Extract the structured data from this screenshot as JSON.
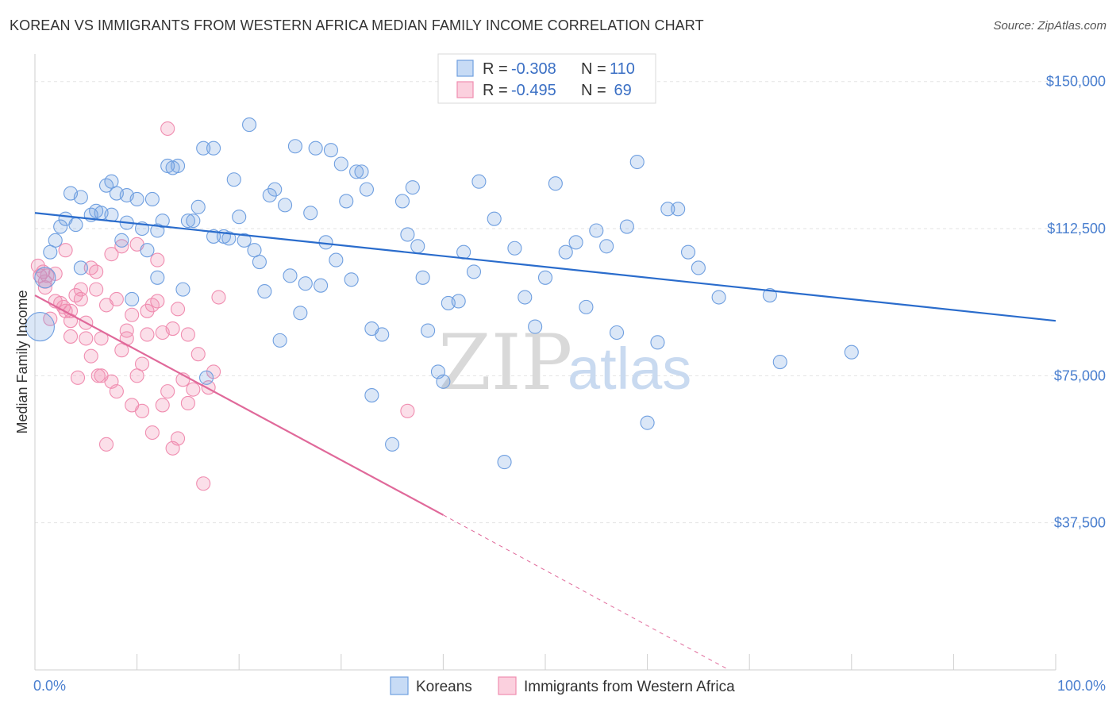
{
  "title": "KOREAN VS IMMIGRANTS FROM WESTERN AFRICA MEDIAN FAMILY INCOME CORRELATION CHART",
  "source": "Source: ZipAtlas.com",
  "watermark": {
    "zip": "ZIP",
    "atlas": "atlas"
  },
  "legend_box": {
    "rows": [
      {
        "r_label": "R = ",
        "r_value": "-0.308",
        "n_label": "N = ",
        "n_value": "110"
      },
      {
        "r_label": "R = ",
        "r_value": "-0.495",
        "n_label": "N = ",
        "n_value": " 69"
      }
    ]
  },
  "colors": {
    "koreans": "#6f9fe0",
    "koreans_line": "#2a6ccc",
    "wafrica": "#f08db0",
    "wafrica_line": "#e0699a",
    "grid": "#e3e3e3",
    "tick_label": "#4a7fcf"
  },
  "chart_data": {
    "type": "scatter",
    "title": "KOREAN VS IMMIGRANTS FROM WESTERN AFRICA MEDIAN FAMILY INCOME CORRELATION CHART",
    "ylabel": "Median Family Income",
    "xlabel": "",
    "xlim": [
      0,
      100
    ],
    "ylim": [
      0,
      155000
    ],
    "x_tick_labels": [
      "0.0%",
      "100.0%"
    ],
    "y_ticks": [
      37500,
      75000,
      112500,
      150000
    ],
    "y_tick_labels": [
      "$37,500",
      "$75,000",
      "$112,500",
      "$150,000"
    ],
    "grid": true,
    "legend_position": "top-center",
    "series": [
      {
        "name": "Koreans",
        "points": [
          [
            0.5,
            87500
          ],
          [
            1.0,
            100000
          ],
          [
            1.5,
            106500
          ],
          [
            2.0,
            109500
          ],
          [
            2.5,
            113000
          ],
          [
            3.0,
            115000
          ],
          [
            3.5,
            121500
          ],
          [
            4.0,
            113500
          ],
          [
            4.5,
            102500
          ],
          [
            4.5,
            120500
          ],
          [
            5.5,
            116000
          ],
          [
            6.0,
            117000
          ],
          [
            6.5,
            116500
          ],
          [
            7.0,
            123500
          ],
          [
            7.5,
            124500
          ],
          [
            7.5,
            116000
          ],
          [
            8.0,
            121500
          ],
          [
            8.5,
            109500
          ],
          [
            9.0,
            114000
          ],
          [
            9.0,
            121000
          ],
          [
            9.5,
            94500
          ],
          [
            10.0,
            120000
          ],
          [
            10.5,
            112500
          ],
          [
            11.0,
            107000
          ],
          [
            11.5,
            120000
          ],
          [
            12.0,
            112000
          ],
          [
            12.0,
            100000
          ],
          [
            12.5,
            114500
          ],
          [
            13.0,
            128500
          ],
          [
            13.5,
            128000
          ],
          [
            14.0,
            128500
          ],
          [
            14.5,
            97000
          ],
          [
            15.0,
            114500
          ],
          [
            15.5,
            114500
          ],
          [
            16.0,
            118000
          ],
          [
            16.5,
            133000
          ],
          [
            16.8,
            74500
          ],
          [
            17.5,
            110500
          ],
          [
            17.5,
            133000
          ],
          [
            18.5,
            110500
          ],
          [
            19.0,
            110000
          ],
          [
            19.5,
            125000
          ],
          [
            20.0,
            115500
          ],
          [
            20.5,
            109500
          ],
          [
            21.0,
            139000
          ],
          [
            21.5,
            107000
          ],
          [
            22.0,
            104000
          ],
          [
            22.5,
            96500
          ],
          [
            23.0,
            121000
          ],
          [
            23.5,
            122500
          ],
          [
            24.0,
            84000
          ],
          [
            24.5,
            118500
          ],
          [
            25.0,
            100500
          ],
          [
            25.5,
            133500
          ],
          [
            26.0,
            91000
          ],
          [
            26.5,
            98500
          ],
          [
            27.0,
            116500
          ],
          [
            27.5,
            133000
          ],
          [
            28.0,
            98000
          ],
          [
            28.5,
            109000
          ],
          [
            29.0,
            132500
          ],
          [
            29.5,
            104500
          ],
          [
            30.0,
            129000
          ],
          [
            30.5,
            119500
          ],
          [
            31.0,
            99500
          ],
          [
            31.5,
            127000
          ],
          [
            32.0,
            127000
          ],
          [
            32.5,
            122500
          ],
          [
            33.0,
            87000
          ],
          [
            33.0,
            70000
          ],
          [
            34.0,
            85500
          ],
          [
            35.0,
            57500
          ],
          [
            36.0,
            119500
          ],
          [
            36.5,
            111000
          ],
          [
            37.0,
            123000
          ],
          [
            37.5,
            108000
          ],
          [
            38.0,
            100000
          ],
          [
            38.5,
            86500
          ],
          [
            39.5,
            76000
          ],
          [
            40.0,
            73500
          ],
          [
            40.5,
            93500
          ],
          [
            41.5,
            94000
          ],
          [
            42.0,
            106500
          ],
          [
            43.0,
            101500
          ],
          [
            43.5,
            124500
          ],
          [
            45.0,
            115000
          ],
          [
            46.0,
            53000
          ],
          [
            47.0,
            107500
          ],
          [
            48.0,
            95000
          ],
          [
            49.0,
            87500
          ],
          [
            50.0,
            100000
          ],
          [
            51.0,
            124000
          ],
          [
            52.0,
            106500
          ],
          [
            53.0,
            109000
          ],
          [
            54.0,
            92500
          ],
          [
            55.0,
            112000
          ],
          [
            56.0,
            108000
          ],
          [
            57.0,
            86000
          ],
          [
            58.0,
            113000
          ],
          [
            59.0,
            129500
          ],
          [
            60.0,
            63000
          ],
          [
            61.0,
            83500
          ],
          [
            62.0,
            117500
          ],
          [
            63.0,
            117500
          ],
          [
            64.0,
            106500
          ],
          [
            65.0,
            102500
          ],
          [
            67.0,
            95000
          ],
          [
            72.0,
            95500
          ],
          [
            73.0,
            78500
          ],
          [
            80.0,
            81000
          ]
        ]
      },
      {
        "name": "Immigrants from Western Africa",
        "points": [
          [
            0.3,
            103000
          ],
          [
            0.5,
            100500
          ],
          [
            0.8,
            101500
          ],
          [
            1.0,
            99000
          ],
          [
            1.2,
            100500
          ],
          [
            1.5,
            89500
          ],
          [
            2.0,
            101000
          ],
          [
            2.5,
            93500
          ],
          [
            2.8,
            92500
          ],
          [
            3.0,
            91500
          ],
          [
            3.0,
            107000
          ],
          [
            3.5,
            85000
          ],
          [
            3.5,
            91500
          ],
          [
            4.0,
            95500
          ],
          [
            4.5,
            97000
          ],
          [
            4.5,
            94500
          ],
          [
            5.0,
            84500
          ],
          [
            5.0,
            88500
          ],
          [
            5.5,
            102500
          ],
          [
            5.5,
            80000
          ],
          [
            6.0,
            97000
          ],
          [
            6.0,
            101500
          ],
          [
            6.5,
            84500
          ],
          [
            6.5,
            75000
          ],
          [
            7.0,
            57500
          ],
          [
            7.0,
            93000
          ],
          [
            7.5,
            73500
          ],
          [
            7.5,
            106000
          ],
          [
            8.0,
            94500
          ],
          [
            8.0,
            71000
          ],
          [
            8.5,
            108000
          ],
          [
            8.5,
            81500
          ],
          [
            9.0,
            84500
          ],
          [
            9.0,
            86500
          ],
          [
            9.5,
            90500
          ],
          [
            9.5,
            67500
          ],
          [
            10.0,
            108500
          ],
          [
            10.0,
            75000
          ],
          [
            10.5,
            78000
          ],
          [
            10.5,
            66000
          ],
          [
            11.0,
            91500
          ],
          [
            11.0,
            85500
          ],
          [
            11.5,
            93000
          ],
          [
            11.5,
            60500
          ],
          [
            12.0,
            104500
          ],
          [
            12.0,
            94000
          ],
          [
            12.5,
            86000
          ],
          [
            12.5,
            67500
          ],
          [
            13.0,
            138000
          ],
          [
            13.0,
            71000
          ],
          [
            13.5,
            87000
          ],
          [
            13.5,
            56500
          ],
          [
            14.0,
            92000
          ],
          [
            14.0,
            59000
          ],
          [
            14.5,
            74000
          ],
          [
            15.0,
            85500
          ],
          [
            15.0,
            68000
          ],
          [
            15.5,
            71500
          ],
          [
            16.0,
            80500
          ],
          [
            16.5,
            47500
          ],
          [
            17.0,
            72000
          ],
          [
            17.5,
            76000
          ],
          [
            18.0,
            95000
          ],
          [
            1.0,
            97500
          ],
          [
            2.0,
            94000
          ],
          [
            3.5,
            89000
          ],
          [
            4.2,
            74500
          ],
          [
            6.2,
            75000
          ],
          [
            36.5,
            66000
          ]
        ]
      }
    ],
    "trendlines": [
      {
        "series": "Koreans",
        "x": [
          0,
          100
        ],
        "y": [
          116500,
          89000
        ]
      },
      {
        "series": "Immigrants from Western Africa",
        "x": [
          0,
          40
        ],
        "y": [
          95500,
          39500
        ],
        "dashed_extension_to": [
          68,
          0
        ]
      }
    ]
  },
  "bottom_legend": [
    "Koreans",
    "Immigrants from Western Africa"
  ]
}
